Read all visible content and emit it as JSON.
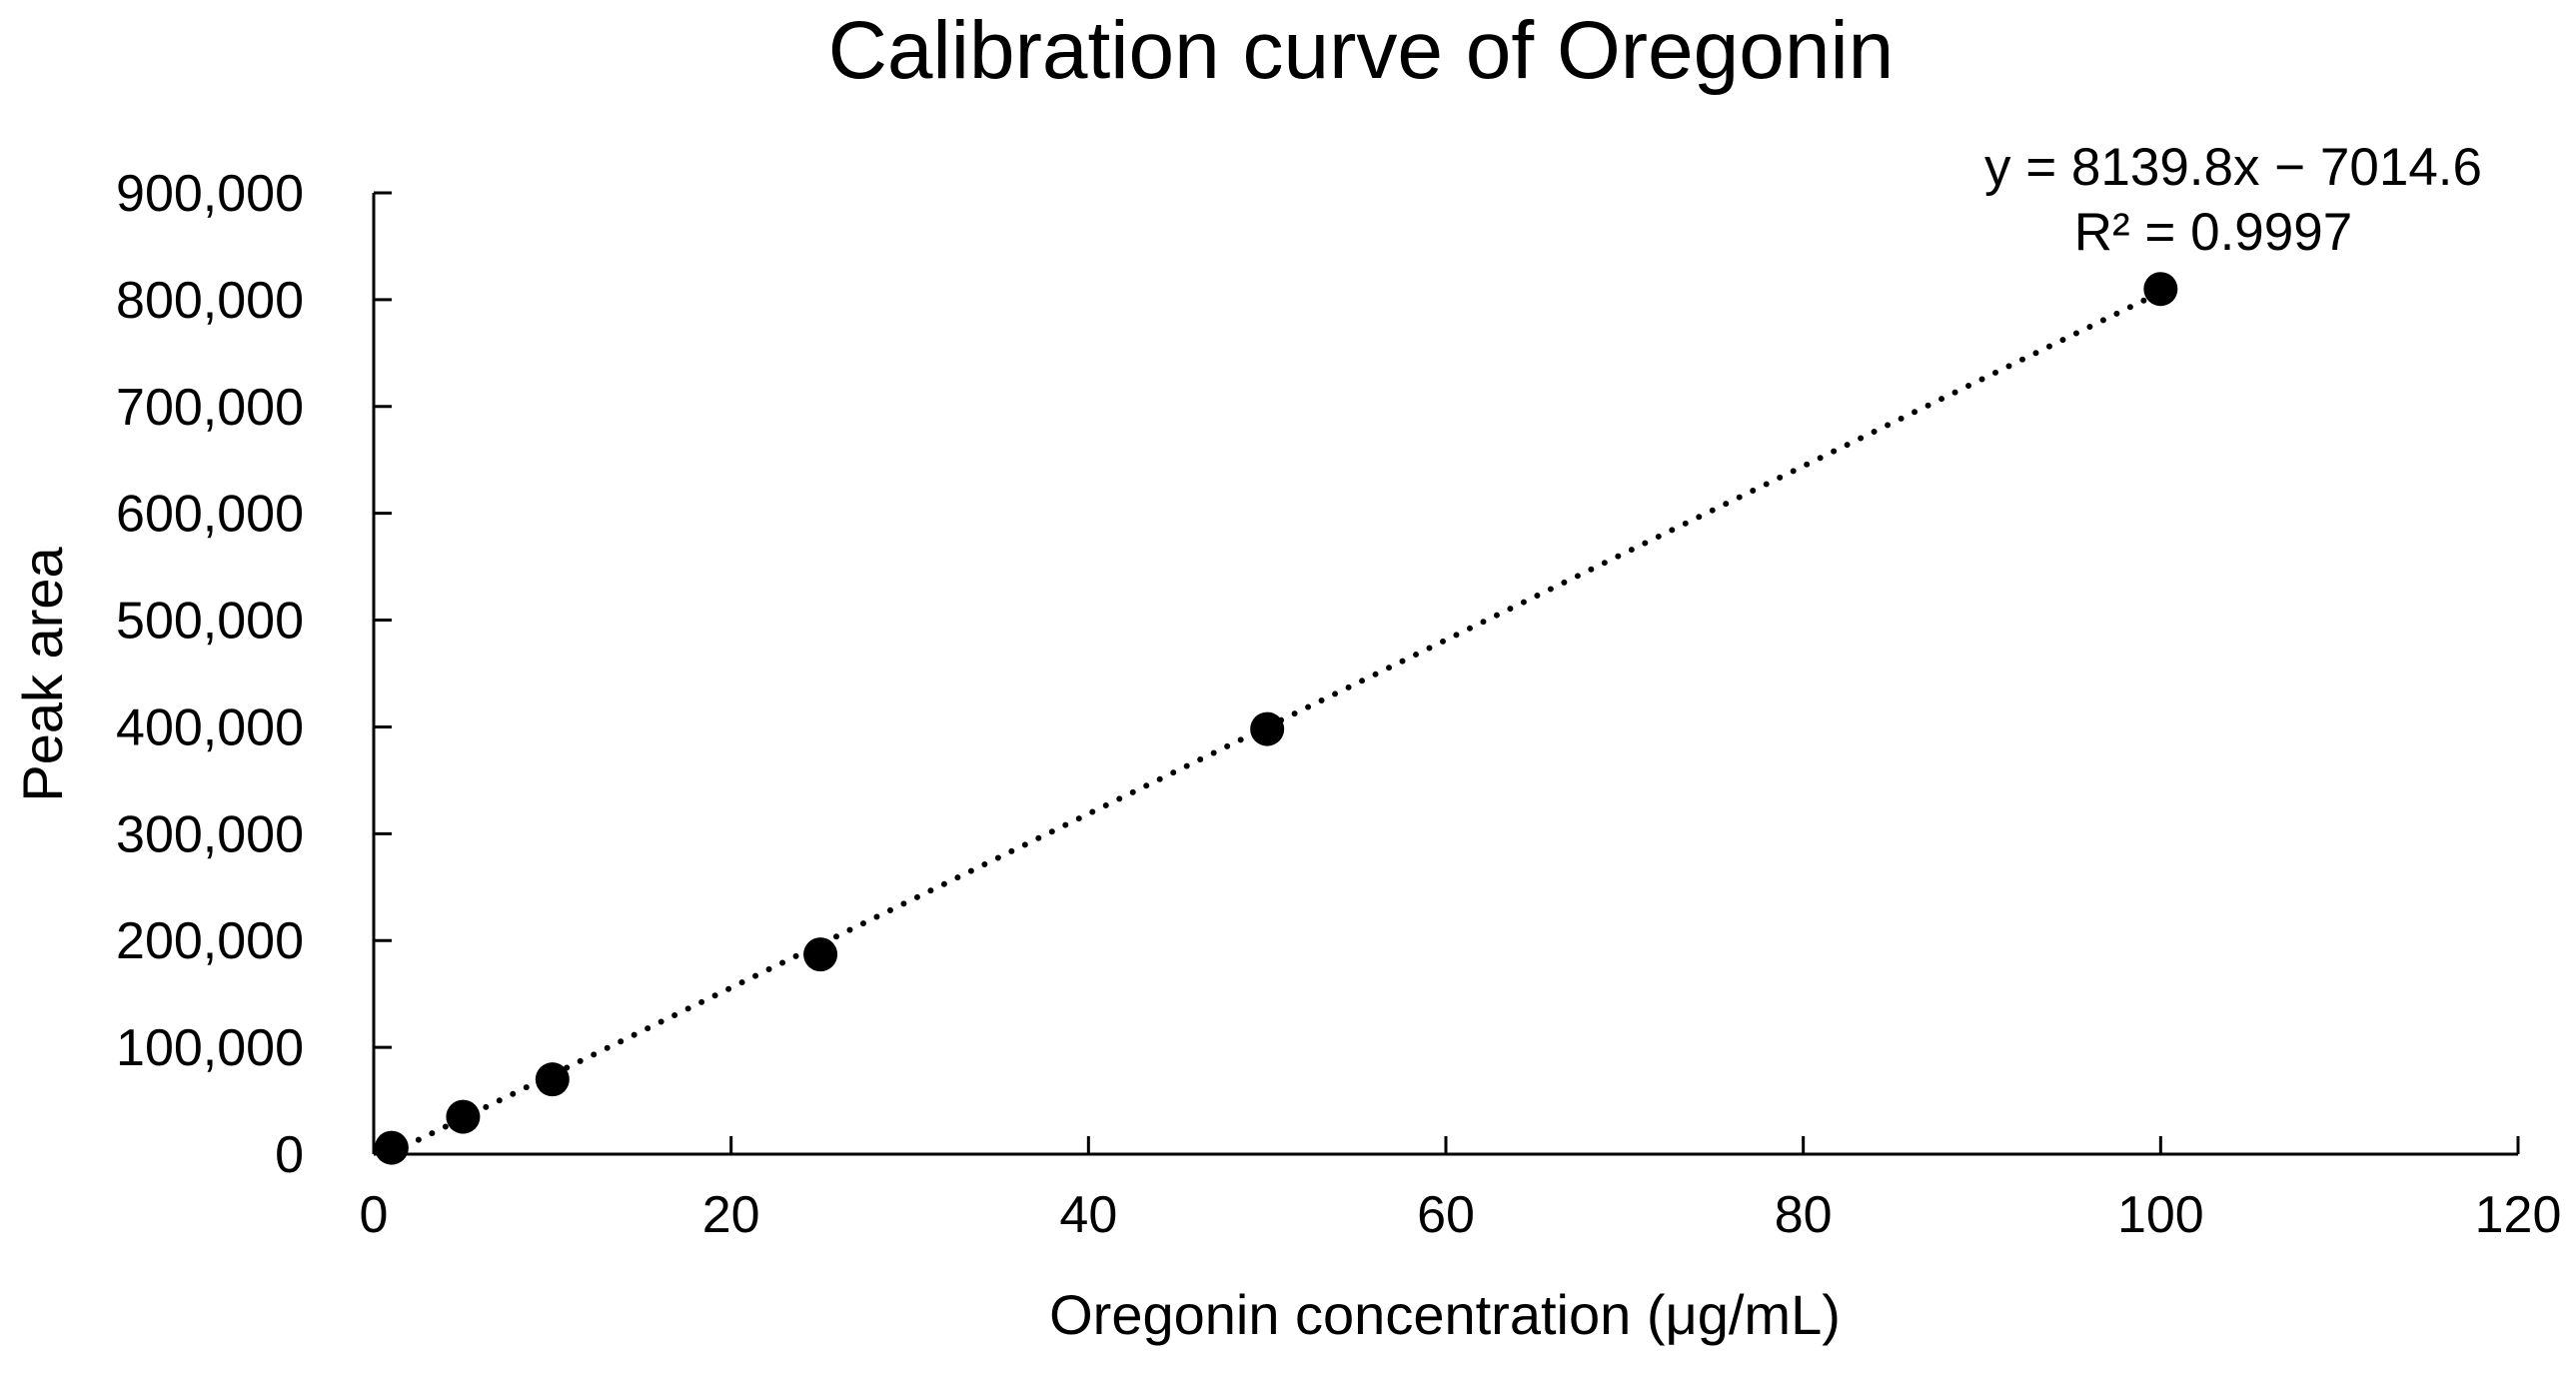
{
  "chart_data": {
    "type": "scatter",
    "title": "Calibration curve of Oregonin",
    "xlabel": "Oregonin concentration (μg/mL)",
    "ylabel": "Peak area",
    "xlim": [
      0,
      120
    ],
    "ylim": [
      0,
      900000
    ],
    "x_ticks": [
      0,
      20,
      40,
      60,
      80,
      100,
      120
    ],
    "y_ticks": [
      0,
      100000,
      200000,
      300000,
      400000,
      500000,
      600000,
      700000,
      800000,
      900000
    ],
    "x_tick_labels": [
      "0",
      "20",
      "40",
      "60",
      "80",
      "100",
      "120"
    ],
    "y_tick_labels": [
      "0",
      "100,000",
      "200,000",
      "300,000",
      "400,000",
      "500,000",
      "600,000",
      "700,000",
      "800,000",
      "900,000"
    ],
    "grid": false,
    "series": [
      {
        "name": "Oregonin",
        "x": [
          1,
          5,
          10,
          25,
          50,
          100
        ],
        "y": [
          6000,
          35000,
          70000,
          187000,
          398000,
          810000
        ]
      }
    ],
    "trendline": {
      "style": "dotted",
      "slope": 8139.8,
      "intercept": -7014.6,
      "x_range": [
        1,
        100
      ],
      "equation": "y = 8139.8x − 7014.6",
      "r_squared": "R² = 0.9997"
    },
    "colors": {
      "marker": "#000000",
      "axis": "#000000",
      "trendline": "#000000",
      "background": "#ffffff"
    }
  }
}
